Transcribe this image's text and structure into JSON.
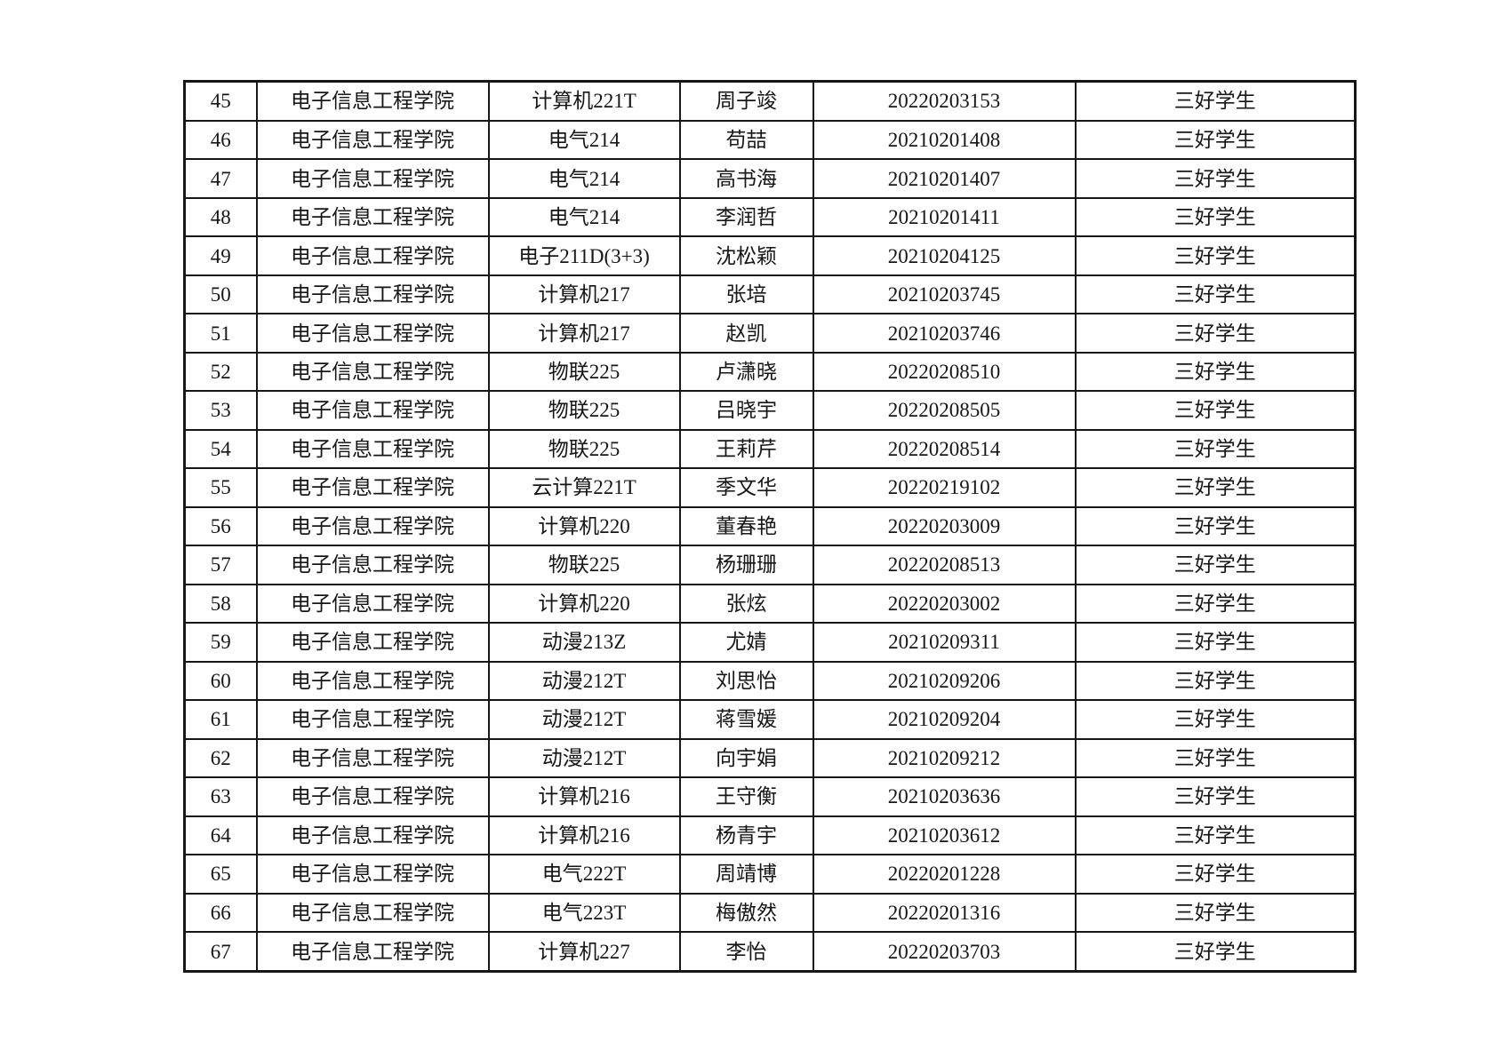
{
  "colors": {
    "background": "#ffffff",
    "table_border": "#161616",
    "text": "#161616"
  },
  "table": {
    "rows": [
      {
        "index": "45",
        "college": "电子信息工程学院",
        "class_name": "计算机221T",
        "student_name": "周子竣",
        "student_id": "20220203153",
        "award": "三好学生"
      },
      {
        "index": "46",
        "college": "电子信息工程学院",
        "class_name": "电气214",
        "student_name": "苟喆",
        "student_id": "20210201408",
        "award": "三好学生"
      },
      {
        "index": "47",
        "college": "电子信息工程学院",
        "class_name": "电气214",
        "student_name": "高书海",
        "student_id": "20210201407",
        "award": "三好学生"
      },
      {
        "index": "48",
        "college": "电子信息工程学院",
        "class_name": "电气214",
        "student_name": "李润哲",
        "student_id": "20210201411",
        "award": "三好学生"
      },
      {
        "index": "49",
        "college": "电子信息工程学院",
        "class_name": "电子211D(3+3)",
        "student_name": "沈松颖",
        "student_id": "20210204125",
        "award": "三好学生"
      },
      {
        "index": "50",
        "college": "电子信息工程学院",
        "class_name": "计算机217",
        "student_name": "张培",
        "student_id": "20210203745",
        "award": "三好学生"
      },
      {
        "index": "51",
        "college": "电子信息工程学院",
        "class_name": "计算机217",
        "student_name": "赵凯",
        "student_id": "20210203746",
        "award": "三好学生"
      },
      {
        "index": "52",
        "college": "电子信息工程学院",
        "class_name": "物联225",
        "student_name": "卢潇晓",
        "student_id": "20220208510",
        "award": "三好学生"
      },
      {
        "index": "53",
        "college": "电子信息工程学院",
        "class_name": "物联225",
        "student_name": "吕晓宇",
        "student_id": "20220208505",
        "award": "三好学生"
      },
      {
        "index": "54",
        "college": "电子信息工程学院",
        "class_name": "物联225",
        "student_name": "王莉芹",
        "student_id": "20220208514",
        "award": "三好学生"
      },
      {
        "index": "55",
        "college": "电子信息工程学院",
        "class_name": "云计算221T",
        "student_name": "季文华",
        "student_id": "20220219102",
        "award": "三好学生"
      },
      {
        "index": "56",
        "college": "电子信息工程学院",
        "class_name": "计算机220",
        "student_name": "董春艳",
        "student_id": "20220203009",
        "award": "三好学生"
      },
      {
        "index": "57",
        "college": "电子信息工程学院",
        "class_name": "物联225",
        "student_name": "杨珊珊",
        "student_id": "20220208513",
        "award": "三好学生"
      },
      {
        "index": "58",
        "college": "电子信息工程学院",
        "class_name": "计算机220",
        "student_name": "张炫",
        "student_id": "20220203002",
        "award": "三好学生"
      },
      {
        "index": "59",
        "college": "电子信息工程学院",
        "class_name": "动漫213Z",
        "student_name": "尤婧",
        "student_id": "20210209311",
        "award": "三好学生"
      },
      {
        "index": "60",
        "college": "电子信息工程学院",
        "class_name": "动漫212T",
        "student_name": "刘思怡",
        "student_id": "20210209206",
        "award": "三好学生"
      },
      {
        "index": "61",
        "college": "电子信息工程学院",
        "class_name": "动漫212T",
        "student_name": "蒋雪媛",
        "student_id": "20210209204",
        "award": "三好学生"
      },
      {
        "index": "62",
        "college": "电子信息工程学院",
        "class_name": "动漫212T",
        "student_name": "向宇娟",
        "student_id": "20210209212",
        "award": "三好学生"
      },
      {
        "index": "63",
        "college": "电子信息工程学院",
        "class_name": "计算机216",
        "student_name": "王守衡",
        "student_id": "20210203636",
        "award": "三好学生"
      },
      {
        "index": "64",
        "college": "电子信息工程学院",
        "class_name": "计算机216",
        "student_name": "杨青宇",
        "student_id": "20210203612",
        "award": "三好学生"
      },
      {
        "index": "65",
        "college": "电子信息工程学院",
        "class_name": "电气222T",
        "student_name": "周靖博",
        "student_id": "20220201228",
        "award": "三好学生"
      },
      {
        "index": "66",
        "college": "电子信息工程学院",
        "class_name": "电气223T",
        "student_name": "梅傲然",
        "student_id": "20220201316",
        "award": "三好学生"
      },
      {
        "index": "67",
        "college": "电子信息工程学院",
        "class_name": "计算机227",
        "student_name": "李怡",
        "student_id": "20220203703",
        "award": "三好学生"
      }
    ]
  }
}
